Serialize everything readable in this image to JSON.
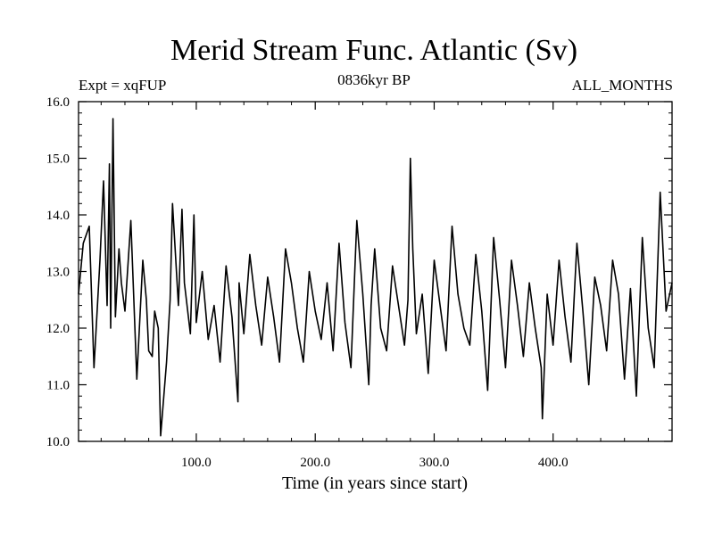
{
  "chart_data": {
    "type": "line",
    "title": "Merid Stream Func. Atlantic (Sv)",
    "subtitle": "0836kyr BP",
    "left_label": "Expt = xqFUP",
    "right_label": "ALL_MONTHS",
    "xlabel": "Time (in years since start)",
    "ylabel": "",
    "xlim": [
      1,
      500
    ],
    "ylim": [
      10.0,
      16.0
    ],
    "x_ticks": [
      {
        "value": 100,
        "label": "100.0"
      },
      {
        "value": 200,
        "label": "200.0"
      },
      {
        "value": 300,
        "label": "300.0"
      },
      {
        "value": 400,
        "label": "400.0"
      }
    ],
    "y_ticks": [
      {
        "value": 10.0,
        "label": "10.0"
      },
      {
        "value": 11.0,
        "label": "11.0"
      },
      {
        "value": 12.0,
        "label": "12.0"
      },
      {
        "value": 13.0,
        "label": "13.0"
      },
      {
        "value": 14.0,
        "label": "14.0"
      },
      {
        "value": 15.0,
        "label": "15.0"
      },
      {
        "value": 16.0,
        "label": "16.0"
      }
    ],
    "series": [
      {
        "name": "Merid Stream Func. Atlantic",
        "x": [
          1,
          5,
          10,
          14,
          19,
          22,
          25,
          27,
          28,
          30,
          32,
          35,
          37,
          40,
          45,
          50,
          55,
          58,
          60,
          63,
          65,
          68,
          70,
          75,
          78,
          80,
          85,
          88,
          90,
          95,
          98,
          100,
          105,
          110,
          115,
          120,
          125,
          130,
          135,
          136,
          140,
          145,
          150,
          155,
          160,
          165,
          170,
          175,
          180,
          185,
          190,
          195,
          200,
          205,
          210,
          215,
          220,
          225,
          230,
          235,
          240,
          245,
          247,
          250,
          255,
          260,
          265,
          270,
          275,
          278,
          280,
          282,
          285,
          290,
          295,
          300,
          305,
          310,
          315,
          320,
          325,
          330,
          335,
          340,
          345,
          350,
          355,
          360,
          365,
          370,
          375,
          380,
          385,
          390,
          391,
          395,
          400,
          405,
          410,
          415,
          420,
          425,
          430,
          435,
          440,
          445,
          450,
          455,
          460,
          465,
          470,
          475,
          480,
          485,
          490,
          495,
          500
        ],
        "y": [
          12.6,
          13.5,
          13.8,
          11.3,
          13.2,
          14.6,
          12.4,
          14.9,
          12.0,
          15.7,
          12.2,
          13.4,
          12.8,
          12.3,
          13.9,
          11.1,
          13.2,
          12.5,
          11.6,
          11.5,
          12.3,
          12.0,
          10.1,
          11.4,
          12.5,
          14.2,
          12.4,
          14.1,
          12.8,
          11.9,
          14.0,
          12.1,
          13.0,
          11.8,
          12.4,
          11.4,
          13.1,
          12.2,
          10.7,
          12.8,
          11.9,
          13.3,
          12.4,
          11.7,
          12.9,
          12.2,
          11.4,
          13.4,
          12.8,
          12.0,
          11.4,
          13.0,
          12.3,
          11.8,
          12.8,
          11.6,
          13.5,
          12.1,
          11.3,
          13.9,
          12.6,
          11.0,
          12.4,
          13.4,
          12.0,
          11.6,
          13.1,
          12.4,
          11.7,
          12.5,
          15.0,
          13.4,
          11.9,
          12.6,
          11.2,
          13.2,
          12.4,
          11.6,
          13.8,
          12.6,
          12.0,
          11.7,
          13.3,
          12.3,
          10.9,
          13.6,
          12.5,
          11.3,
          13.2,
          12.4,
          11.5,
          12.8,
          12.0,
          11.3,
          10.4,
          12.6,
          11.7,
          13.2,
          12.2,
          11.4,
          13.5,
          12.3,
          11.0,
          12.9,
          12.4,
          11.6,
          13.2,
          12.6,
          11.1,
          12.7,
          10.8,
          13.6,
          12.0,
          11.3,
          14.4,
          12.3,
          12.8
        ]
      }
    ]
  }
}
